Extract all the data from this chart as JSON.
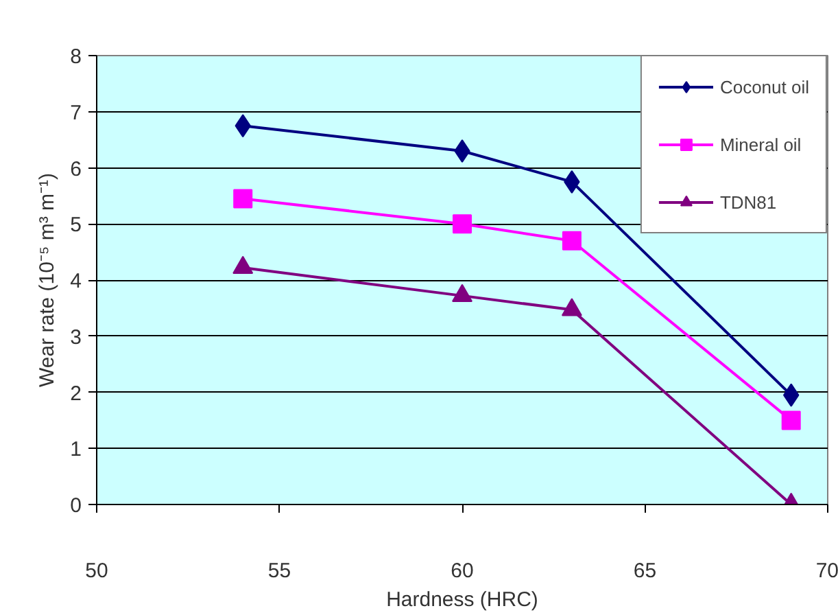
{
  "chart_data": {
    "type": "line",
    "xlabel": "Hardness (HRC)",
    "ylabel": "Wear rate (10⁻⁵ m³ m⁻¹)",
    "x": [
      54,
      60,
      63,
      69
    ],
    "series": [
      {
        "name": "Coconut oil",
        "color": "#000080",
        "values": [
          6.75,
          6.3,
          5.75,
          1.95
        ],
        "marker": "diamond"
      },
      {
        "name": "Mineral oil",
        "color": "#ff00ff",
        "values": [
          5.45,
          5.0,
          4.7,
          1.5
        ],
        "marker": "square"
      },
      {
        "name": "TDN81",
        "color": "#800080",
        "values": [
          4.22,
          3.72,
          3.47,
          0.0
        ],
        "marker": "triangle"
      }
    ],
    "xlim": [
      50,
      70
    ],
    "xticks": [
      50,
      55,
      60,
      65,
      70
    ],
    "ylim": [
      0,
      8
    ],
    "yticks": [
      0,
      1,
      2,
      3,
      4,
      5,
      6,
      7,
      8
    ],
    "grid": "y",
    "legend": "top right"
  }
}
